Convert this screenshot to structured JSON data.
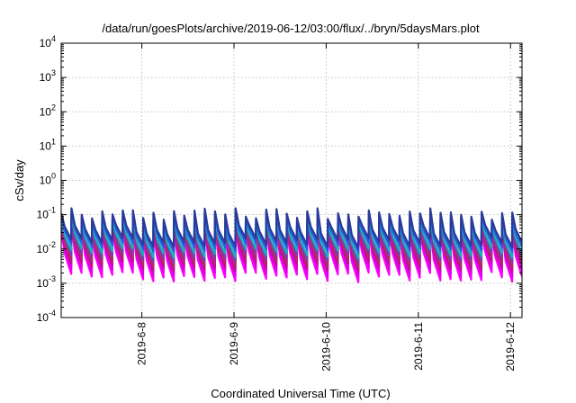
{
  "chart_data": {
    "type": "line",
    "title": "/data/run/goesPlots/archive/2019-06-12/03:00/flux/../bryn/5daysMars.plot",
    "xlabel": "Coordinated Universal Time (UTC)",
    "ylabel": "cSv/day",
    "yscale": "log",
    "ylim": [
      0.0001,
      10000
    ],
    "xlim": [
      "2019-06-07T03:00",
      "2019-06-12T03:00"
    ],
    "grid": true,
    "x_ticks": [
      {
        "value": "2019-06-08T00:00",
        "label": "2019-6-8"
      },
      {
        "value": "2019-06-09T00:00",
        "label": "2019-6-9"
      },
      {
        "value": "2019-06-10T00:00",
        "label": "2019-6-10"
      },
      {
        "value": "2019-06-11T00:00",
        "label": "2019-6-11"
      },
      {
        "value": "2019-06-12T00:00",
        "label": "2019-6-12"
      }
    ],
    "y_ticks": [
      {
        "value": 0.0001,
        "base": "10",
        "exp": "-4"
      },
      {
        "value": 0.001,
        "base": "10",
        "exp": "-3"
      },
      {
        "value": 0.01,
        "base": "10",
        "exp": "-2"
      },
      {
        "value": 0.1,
        "base": "10",
        "exp": "-1"
      },
      {
        "value": 1,
        "base": "10",
        "exp": "0"
      },
      {
        "value": 10,
        "base": "10",
        "exp": "1"
      },
      {
        "value": 100,
        "base": "10",
        "exp": "2"
      },
      {
        "value": 1000,
        "base": "10",
        "exp": "3"
      },
      {
        "value": 10000,
        "base": "10",
        "exp": "4"
      }
    ],
    "pattern": {
      "period_hours": 2.67,
      "series_count": 8
    },
    "series": [
      {
        "color": "#ff00ff",
        "peak": 0.032,
        "trough": 0.0015
      },
      {
        "color": "#e000e8",
        "peak": 0.038,
        "trough": 0.0021
      },
      {
        "color": "#c0108c",
        "peak": 0.045,
        "trough": 0.003
      },
      {
        "color": "#b22a6a",
        "peak": 0.052,
        "trough": 0.004
      },
      {
        "color": "#7a3fb0",
        "peak": 0.06,
        "trough": 0.0055
      },
      {
        "color": "#17b0b8",
        "peak": 0.07,
        "trough": 0.0075
      },
      {
        "color": "#2060e0",
        "peak": 0.09,
        "trough": 0.011
      },
      {
        "color": "#2a3a9a",
        "peak": 0.105,
        "trough": 0.015
      }
    ]
  }
}
